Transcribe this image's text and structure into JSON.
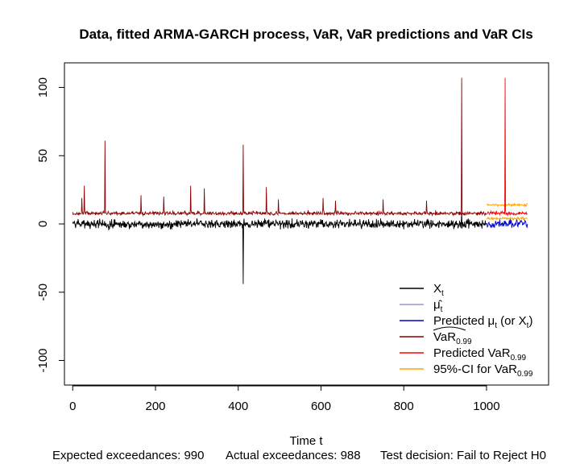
{
  "chart_data": {
    "type": "line",
    "title": "Data, fitted ARMA-GARCH process, VaR, VaR predictions and VaR CIs",
    "xlabel": "Time t",
    "ylabel": "",
    "xlim": [
      -20,
      1150
    ],
    "ylim": [
      -118,
      118
    ],
    "x_ticks": [
      0,
      200,
      400,
      600,
      800,
      1000
    ],
    "x_tick_labels": [
      "0",
      "200",
      "400",
      "600",
      "800",
      "1000"
    ],
    "y_ticks": [
      -100,
      -50,
      0,
      50,
      100
    ],
    "y_tick_labels": [
      "-100",
      "-50",
      "0",
      "50",
      "100"
    ],
    "grid": false,
    "legend_position": "bottom-right",
    "n_train": 1000,
    "n_test": 100,
    "series": [
      {
        "key": "X",
        "color": "#000000",
        "label_main": "X",
        "label_sub": "t"
      },
      {
        "key": "mu_hat",
        "color": "#9999cc",
        "label_main": "μ̂",
        "label_sub": "t"
      },
      {
        "key": "mu_pred",
        "color": "#0000cc",
        "label_main": "Predicted μ",
        "label_sub": "t",
        "label_rest": " (or X",
        "label_sub2": "t",
        "label_end": ")"
      },
      {
        "key": "VaR_hat",
        "color": "#8b0000",
        "label_main": "VaR",
        "label_sub": "0.99",
        "hat": true
      },
      {
        "key": "VaR_pred",
        "color": "#ff0000",
        "label_main": "Predicted VaR",
        "label_sub": "0.99"
      },
      {
        "key": "VaR_CI",
        "color": "#ffa500",
        "label_main": "95%-CI for VaR",
        "label_sub": "0.99"
      }
    ],
    "spikes_X": [
      {
        "t": 412,
        "value": -44
      },
      {
        "t": 940,
        "value": 8
      }
    ],
    "spikes_VaR": [
      {
        "t": 22,
        "value": 19
      },
      {
        "t": 28,
        "value": 28
      },
      {
        "t": 78,
        "value": 61
      },
      {
        "t": 165,
        "value": 21
      },
      {
        "t": 220,
        "value": 20
      },
      {
        "t": 285,
        "value": 28
      },
      {
        "t": 318,
        "value": 26
      },
      {
        "t": 412,
        "value": 58
      },
      {
        "t": 468,
        "value": 27
      },
      {
        "t": 497,
        "value": 18
      },
      {
        "t": 605,
        "value": 19
      },
      {
        "t": 635,
        "value": 17
      },
      {
        "t": 750,
        "value": 18
      },
      {
        "t": 855,
        "value": 17
      },
      {
        "t": 940,
        "value": 107
      },
      {
        "t": 1045,
        "value": 107
      }
    ],
    "level_X": 0,
    "level_VaR": 7,
    "level_CI_upper": 14,
    "level_CI_lower": 4
  },
  "footer": {
    "expected": "Expected exceedances: 990",
    "actual": "Actual exceedances: 988",
    "decision": "Test decision: Fail to Reject H0"
  }
}
